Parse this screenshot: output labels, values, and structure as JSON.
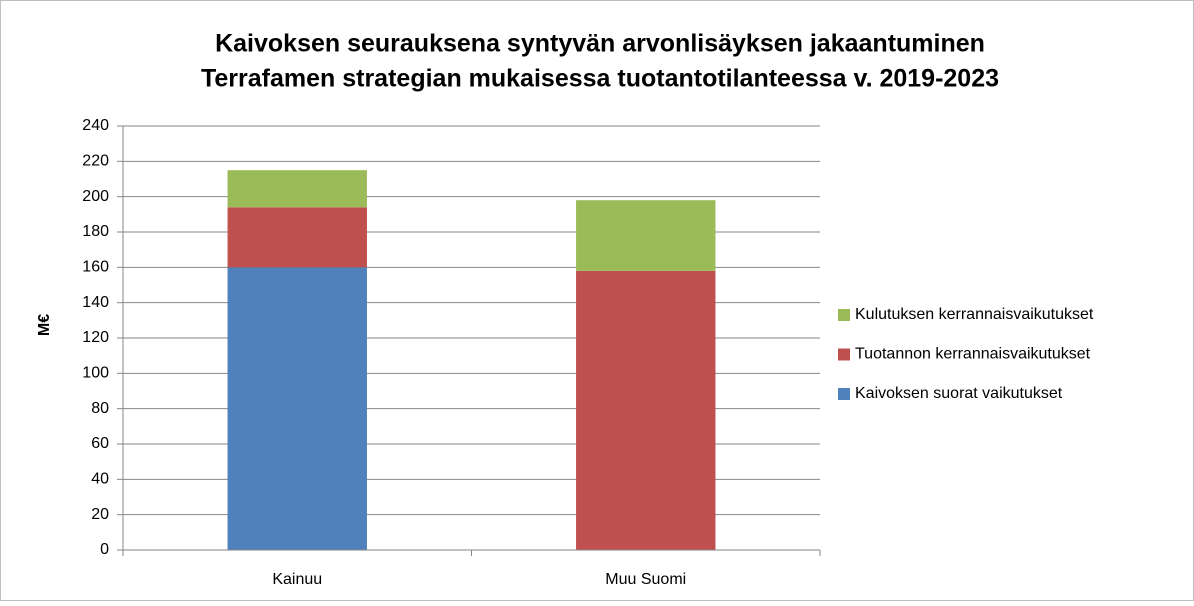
{
  "chart_data": {
    "type": "stacked_bar",
    "title": [
      "Kaivoksen seurauksena syntyvän arvonlisäyksen jakaantuminen",
      "Terrafamen strategian mukaisessa tuotantotilanteessa v. 2019-2023"
    ],
    "y_label": "M€",
    "categories": [
      "Kainuu",
      "Muu Suomi"
    ],
    "series": [
      {
        "name": "Kaivoksen suorat vaikutukset",
        "color": "#4f81bd",
        "values": [
          160,
          0
        ]
      },
      {
        "name": "Tuotannon kerrannaisvaikutukset",
        "color": "#c0504d",
        "values": [
          34,
          158
        ]
      },
      {
        "name": "Kulutuksen kerrannaisvaikutukset",
        "color": "#9bbb59",
        "values": [
          21,
          40
        ]
      }
    ],
    "ylim": [
      0,
      240
    ],
    "yticks": [
      0,
      20,
      40,
      60,
      80,
      100,
      120,
      140,
      160,
      180,
      200,
      220,
      240
    ],
    "grid": true,
    "legend": "right"
  }
}
